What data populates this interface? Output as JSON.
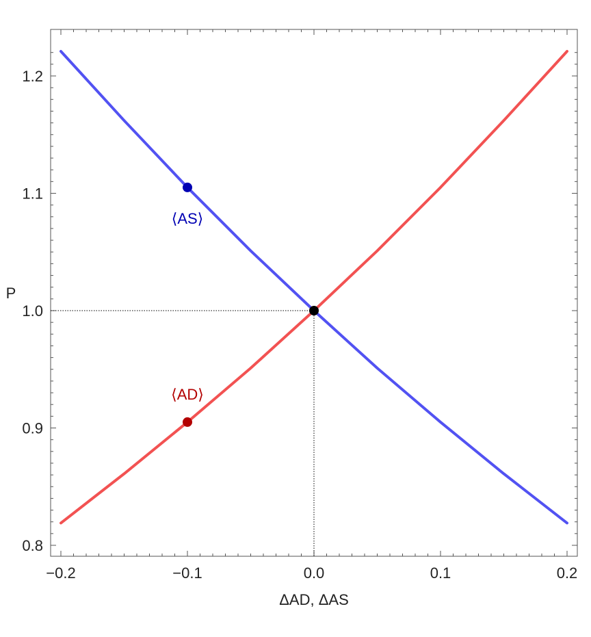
{
  "chart_data": {
    "type": "line",
    "xlabel": "ΔAD, ΔAS",
    "ylabel": "P",
    "xlim": [
      -0.2,
      0.2
    ],
    "ylim": [
      0.8,
      1.22
    ],
    "x_ticks": [
      -0.2,
      -0.1,
      0.0,
      0.1,
      0.2
    ],
    "x_tick_labels": [
      "−0.2",
      "−0.1",
      "0.0",
      "0.1",
      "0.2"
    ],
    "y_ticks": [
      0.8,
      0.9,
      1.0,
      1.1,
      1.2
    ],
    "y_tick_labels": [
      "0.8",
      "0.9",
      "1.0",
      "1.1",
      "1.2"
    ],
    "grid": false,
    "series": [
      {
        "color": "#f25252",
        "x": [
          -0.2,
          -0.15,
          -0.1,
          -0.05,
          0.0,
          0.05,
          0.1,
          0.15,
          0.2
        ],
        "y": [
          0.819,
          0.861,
          0.905,
          0.951,
          1.0,
          1.051,
          1.105,
          1.162,
          1.221
        ]
      },
      {
        "color": "#5252f2",
        "x": [
          -0.2,
          -0.15,
          -0.1,
          -0.05,
          0.0,
          0.05,
          0.1,
          0.15,
          0.2
        ],
        "y": [
          1.221,
          1.162,
          1.105,
          1.051,
          1.0,
          0.951,
          0.905,
          0.861,
          0.819
        ]
      }
    ],
    "points": [
      {
        "x": -0.1,
        "y": 0.905,
        "color": "#b30000",
        "label": "⟨AD⟩",
        "label_color": "#b30000",
        "label_pos": "above"
      },
      {
        "x": -0.1,
        "y": 1.105,
        "color": "#0000b3",
        "label": "⟨AS⟩",
        "label_color": "#0000b3",
        "label_pos": "below"
      },
      {
        "x": 0.0,
        "y": 1.0,
        "color": "#000000",
        "label": "",
        "label_pos": "none"
      }
    ],
    "reference_lines": {
      "x": 0.0,
      "y": 1.0,
      "style": "dotted"
    }
  }
}
